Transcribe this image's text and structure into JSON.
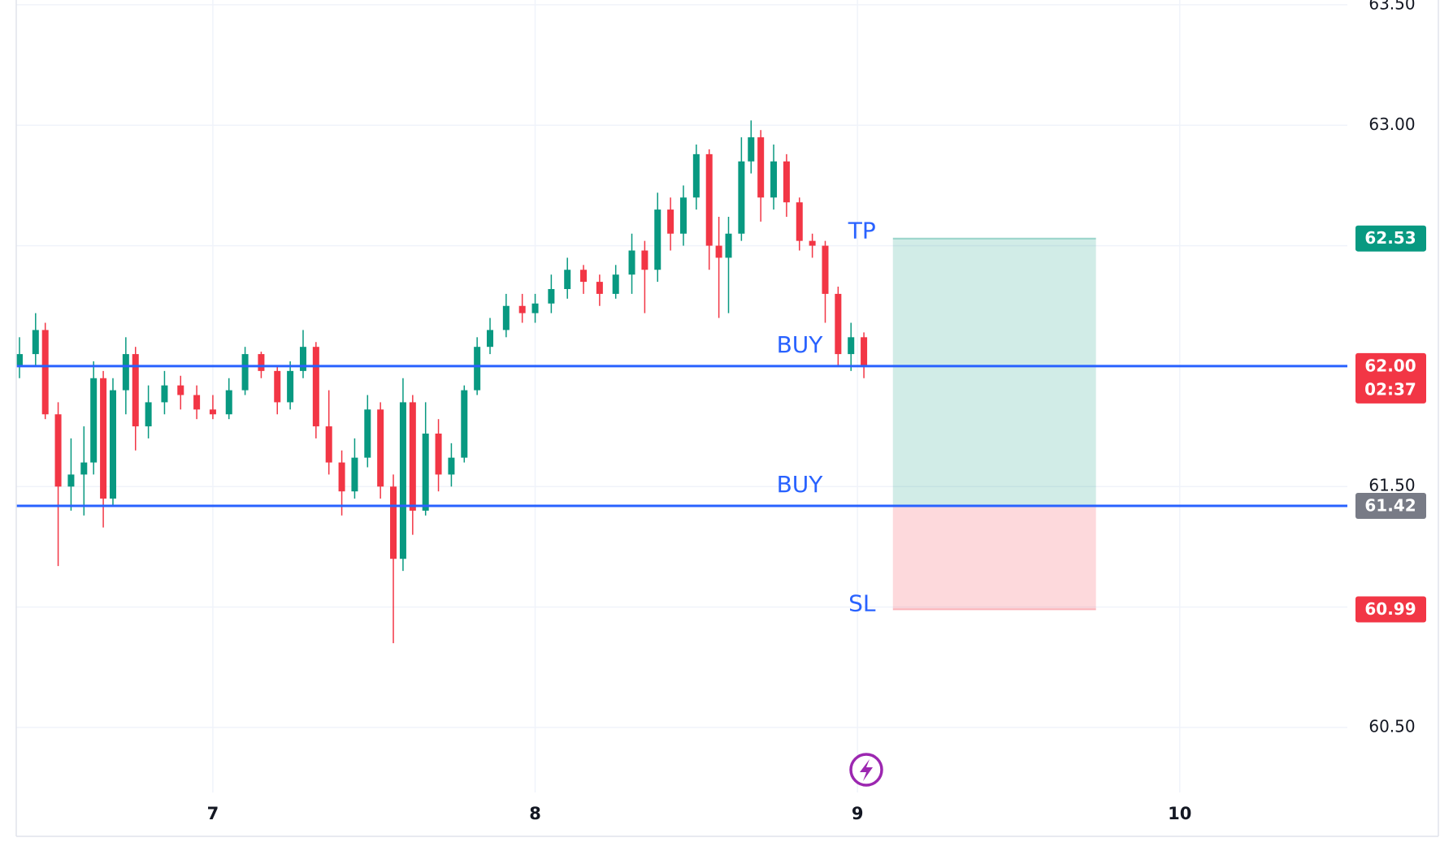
{
  "chart_data": {
    "type": "candlestick",
    "up_color": "#089981",
    "down_color": "#f23645",
    "grid": true,
    "xlim": [
      6.39,
      10.52
    ],
    "ylim": [
      60.23,
      63.52
    ],
    "xticks": [
      7,
      8,
      9,
      10
    ],
    "yticks": [
      {
        "value": 60.5,
        "label": "60.50"
      },
      {
        "value": 61.0,
        "label": "61.00"
      },
      {
        "value": 61.5,
        "label": "61.50"
      },
      {
        "value": 62.0,
        "label": "62.00"
      },
      {
        "value": 62.5,
        "label": "62.50"
      },
      {
        "value": 63.0,
        "label": "63.00"
      },
      {
        "value": 63.5,
        "label": "63.50"
      }
    ],
    "x": [
      6.4,
      6.45,
      6.48,
      6.52,
      6.56,
      6.6,
      6.63,
      6.66,
      6.69,
      6.73,
      6.76,
      6.8,
      6.85,
      6.9,
      6.95,
      7.0,
      7.05,
      7.1,
      7.15,
      7.2,
      7.24,
      7.28,
      7.32,
      7.36,
      7.4,
      7.44,
      7.48,
      7.52,
      7.56,
      7.59,
      7.62,
      7.66,
      7.7,
      7.74,
      7.78,
      7.82,
      7.86,
      7.91,
      7.96,
      8.0,
      8.05,
      8.1,
      8.15,
      8.2,
      8.25,
      8.3,
      8.34,
      8.38,
      8.42,
      8.46,
      8.5,
      8.54,
      8.57,
      8.6,
      8.64,
      8.67,
      8.7,
      8.74,
      8.78,
      8.82,
      8.86,
      8.9,
      8.94,
      8.98,
      9.02
    ],
    "open": [
      62.0,
      62.05,
      62.15,
      61.8,
      61.5,
      61.55,
      61.6,
      61.95,
      61.45,
      61.9,
      62.05,
      61.75,
      61.85,
      61.92,
      61.88,
      61.82,
      61.8,
      61.9,
      62.05,
      61.98,
      61.85,
      61.98,
      62.08,
      61.75,
      61.6,
      61.48,
      61.62,
      61.82,
      61.5,
      61.2,
      61.85,
      61.4,
      61.72,
      61.55,
      61.62,
      61.9,
      62.08,
      62.15,
      62.25,
      62.22,
      62.26,
      62.32,
      62.4,
      62.35,
      62.3,
      62.38,
      62.48,
      62.4,
      62.65,
      62.55,
      62.7,
      62.88,
      62.5,
      62.45,
      62.55,
      62.85,
      62.95,
      62.7,
      62.85,
      62.68,
      62.52,
      62.5,
      62.3,
      62.05,
      62.12
    ],
    "high": [
      62.12,
      62.22,
      62.18,
      61.85,
      61.7,
      61.75,
      62.02,
      61.98,
      61.95,
      62.12,
      62.08,
      61.92,
      61.98,
      61.96,
      61.92,
      61.88,
      61.95,
      62.08,
      62.06,
      62.0,
      62.02,
      62.15,
      62.1,
      61.9,
      61.65,
      61.7,
      61.88,
      61.85,
      61.55,
      61.95,
      61.88,
      61.85,
      61.78,
      61.68,
      61.92,
      62.12,
      62.2,
      62.3,
      62.3,
      62.3,
      62.38,
      62.45,
      62.42,
      62.38,
      62.42,
      62.55,
      62.52,
      62.72,
      62.7,
      62.75,
      62.92,
      62.9,
      62.62,
      62.62,
      62.95,
      63.02,
      62.98,
      62.92,
      62.88,
      62.7,
      62.55,
      62.52,
      62.33,
      62.18,
      62.14
    ],
    "low": [
      61.95,
      62.0,
      61.78,
      61.17,
      61.4,
      61.38,
      61.55,
      61.33,
      61.42,
      61.8,
      61.65,
      61.7,
      61.8,
      61.82,
      61.78,
      61.78,
      61.78,
      61.88,
      61.95,
      61.8,
      61.82,
      61.95,
      61.7,
      61.55,
      61.38,
      61.45,
      61.58,
      61.45,
      60.85,
      61.15,
      61.3,
      61.38,
      61.48,
      61.5,
      61.6,
      61.88,
      62.05,
      62.12,
      62.18,
      62.18,
      62.22,
      62.28,
      62.3,
      62.25,
      62.28,
      62.3,
      62.22,
      62.35,
      62.48,
      62.5,
      62.65,
      62.4,
      62.2,
      62.22,
      62.52,
      62.8,
      62.6,
      62.65,
      62.62,
      62.48,
      62.45,
      62.18,
      62.0,
      61.98,
      61.95
    ],
    "close": [
      62.05,
      62.15,
      61.8,
      61.5,
      61.55,
      61.6,
      61.95,
      61.45,
      61.9,
      62.05,
      61.75,
      61.85,
      61.92,
      61.88,
      61.82,
      61.8,
      61.9,
      62.05,
      61.98,
      61.85,
      61.98,
      62.08,
      61.75,
      61.6,
      61.48,
      61.62,
      61.82,
      61.5,
      61.2,
      61.85,
      61.4,
      61.72,
      61.55,
      61.62,
      61.9,
      62.08,
      62.15,
      62.25,
      62.22,
      62.26,
      62.32,
      62.4,
      62.35,
      62.3,
      62.38,
      62.48,
      62.4,
      62.65,
      62.55,
      62.7,
      62.88,
      62.5,
      62.45,
      62.55,
      62.85,
      62.95,
      62.7,
      62.85,
      62.68,
      62.52,
      62.5,
      62.3,
      62.05,
      62.12,
      62.0
    ],
    "lines": [
      {
        "value": 62.0,
        "label": "BUY",
        "color": "#2962ff"
      },
      {
        "value": 61.42,
        "label": "BUY",
        "color": "#2962ff"
      }
    ],
    "position": {
      "x_start": 9.11,
      "x_end": 9.74,
      "take_profit": 62.53,
      "entry": 61.42,
      "stop_loss": 60.99,
      "tp_label": "TP",
      "sl_label": "SL",
      "profit_color": "#089981",
      "loss_color": "#f23645"
    },
    "price_tags": [
      {
        "value": 62.53,
        "label": "62.53",
        "color": "#089981"
      },
      {
        "value": 62.0,
        "label": "62.00",
        "sublabel": "02:37",
        "color": "#f23645"
      },
      {
        "value": 61.42,
        "label": "61.42",
        "color": "#787b86"
      },
      {
        "value": 60.99,
        "label": "60.99",
        "color": "#f23645"
      }
    ]
  }
}
